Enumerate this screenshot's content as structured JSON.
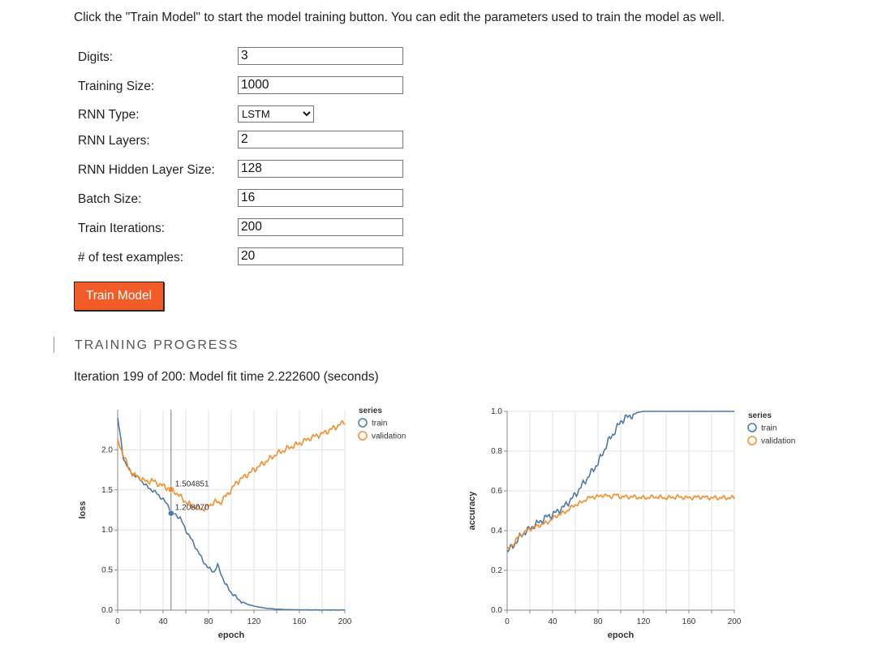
{
  "instructions": "Click the \"Train Model\" to start the model training button. You can edit the parameters used to train the model as well.",
  "form": {
    "fields": [
      {
        "label": "Digits:",
        "value": "3"
      },
      {
        "label": "Training Size:",
        "value": "1000"
      },
      {
        "label": "RNN Type:",
        "value": "LSTM",
        "type": "select"
      },
      {
        "label": "RNN Layers:",
        "value": "2"
      },
      {
        "label": "RNN Hidden Layer Size:",
        "value": "128"
      },
      {
        "label": "Batch Size:",
        "value": "16"
      },
      {
        "label": "Train Iterations:",
        "value": "200"
      },
      {
        "label": "# of test examples:",
        "value": "20"
      }
    ],
    "train_button": "Train Model"
  },
  "progress": {
    "title": "TRAINING PROGRESS",
    "status": "Iteration 199 of 200: Model fit time 2.222600 (seconds)"
  },
  "colors": {
    "train": "#4e79a7",
    "validation": "#f28e2b",
    "button": "#f35c26"
  },
  "chart_data": [
    {
      "type": "line",
      "xlabel": "epoch",
      "ylabel": "loss",
      "xlim": [
        0,
        200
      ],
      "ylim": [
        0,
        2.5
      ],
      "xticks": [
        0,
        40,
        80,
        120,
        160,
        200
      ],
      "yticks": [
        0.0,
        0.5,
        1.0,
        1.5,
        2.0
      ],
      "legend": {
        "title": "series",
        "placement": "top-right"
      },
      "tooltip": {
        "x": 47,
        "labels": [
          "1.504851",
          "1.208070"
        ]
      },
      "series": [
        {
          "name": "train",
          "points": [
            [
              0,
              2.4
            ],
            [
              5,
              1.9
            ],
            [
              10,
              1.75
            ],
            [
              15,
              1.68
            ],
            [
              20,
              1.63
            ],
            [
              25,
              1.55
            ],
            [
              30,
              1.5
            ],
            [
              35,
              1.45
            ],
            [
              40,
              1.38
            ],
            [
              45,
              1.3
            ],
            [
              47,
              1.208
            ],
            [
              50,
              1.2
            ],
            [
              55,
              1.15
            ],
            [
              60,
              1.0
            ],
            [
              65,
              0.88
            ],
            [
              70,
              0.75
            ],
            [
              75,
              0.62
            ],
            [
              80,
              0.52
            ],
            [
              85,
              0.48
            ],
            [
              88,
              0.56
            ],
            [
              92,
              0.42
            ],
            [
              95,
              0.32
            ],
            [
              100,
              0.22
            ],
            [
              105,
              0.15
            ],
            [
              110,
              0.1
            ],
            [
              115,
              0.07
            ],
            [
              120,
              0.05
            ],
            [
              130,
              0.025
            ],
            [
              140,
              0.012
            ],
            [
              150,
              0.006
            ],
            [
              160,
              0.004
            ],
            [
              180,
              0.002
            ],
            [
              200,
              0.002
            ]
          ]
        },
        {
          "name": "validation",
          "points": [
            [
              0,
              2.1
            ],
            [
              5,
              1.95
            ],
            [
              10,
              1.75
            ],
            [
              15,
              1.68
            ],
            [
              20,
              1.65
            ],
            [
              25,
              1.6
            ],
            [
              30,
              1.62
            ],
            [
              35,
              1.58
            ],
            [
              40,
              1.55
            ],
            [
              45,
              1.52
            ],
            [
              47,
              1.505
            ],
            [
              50,
              1.48
            ],
            [
              55,
              1.42
            ],
            [
              60,
              1.35
            ],
            [
              65,
              1.3
            ],
            [
              70,
              1.28
            ],
            [
              75,
              1.26
            ],
            [
              80,
              1.3
            ],
            [
              85,
              1.35
            ],
            [
              90,
              1.34
            ],
            [
              95,
              1.42
            ],
            [
              100,
              1.5
            ],
            [
              105,
              1.6
            ],
            [
              110,
              1.65
            ],
            [
              120,
              1.75
            ],
            [
              130,
              1.85
            ],
            [
              140,
              1.95
            ],
            [
              150,
              2.02
            ],
            [
              160,
              2.08
            ],
            [
              170,
              2.15
            ],
            [
              180,
              2.2
            ],
            [
              190,
              2.27
            ],
            [
              200,
              2.35
            ]
          ]
        }
      ]
    },
    {
      "type": "line",
      "xlabel": "epoch",
      "ylabel": "accuracy",
      "xlim": [
        0,
        200
      ],
      "ylim": [
        0,
        1.0
      ],
      "xticks": [
        0,
        40,
        80,
        120,
        160,
        200
      ],
      "yticks": [
        0.0,
        0.2,
        0.4,
        0.6,
        0.8,
        1.0
      ],
      "legend": {
        "title": "series",
        "placement": "top-right"
      },
      "series": [
        {
          "name": "train",
          "points": [
            [
              0,
              0.3
            ],
            [
              5,
              0.32
            ],
            [
              10,
              0.36
            ],
            [
              15,
              0.39
            ],
            [
              20,
              0.41
            ],
            [
              25,
              0.43
            ],
            [
              30,
              0.45
            ],
            [
              35,
              0.47
            ],
            [
              40,
              0.48
            ],
            [
              45,
              0.5
            ],
            [
              50,
              0.52
            ],
            [
              55,
              0.55
            ],
            [
              60,
              0.58
            ],
            [
              65,
              0.62
            ],
            [
              70,
              0.66
            ],
            [
              75,
              0.7
            ],
            [
              80,
              0.74
            ],
            [
              85,
              0.8
            ],
            [
              90,
              0.86
            ],
            [
              95,
              0.9
            ],
            [
              100,
              0.95
            ],
            [
              105,
              0.97
            ],
            [
              110,
              0.98
            ],
            [
              115,
              0.995
            ],
            [
              120,
              1.0
            ],
            [
              140,
              1.0
            ],
            [
              160,
              1.0
            ],
            [
              180,
              1.0
            ],
            [
              200,
              1.0
            ]
          ]
        },
        {
          "name": "validation",
          "points": [
            [
              0,
              0.3
            ],
            [
              5,
              0.33
            ],
            [
              10,
              0.37
            ],
            [
              15,
              0.39
            ],
            [
              20,
              0.41
            ],
            [
              25,
              0.42
            ],
            [
              30,
              0.43
            ],
            [
              35,
              0.44
            ],
            [
              40,
              0.46
            ],
            [
              45,
              0.48
            ],
            [
              50,
              0.49
            ],
            [
              55,
              0.51
            ],
            [
              60,
              0.53
            ],
            [
              65,
              0.54
            ],
            [
              70,
              0.56
            ],
            [
              75,
              0.57
            ],
            [
              80,
              0.57
            ],
            [
              85,
              0.58
            ],
            [
              90,
              0.57
            ],
            [
              95,
              0.58
            ],
            [
              100,
              0.57
            ],
            [
              105,
              0.57
            ],
            [
              110,
              0.57
            ],
            [
              120,
              0.565
            ],
            [
              130,
              0.57
            ],
            [
              140,
              0.565
            ],
            [
              150,
              0.57
            ],
            [
              160,
              0.565
            ],
            [
              170,
              0.57
            ],
            [
              180,
              0.565
            ],
            [
              190,
              0.565
            ],
            [
              200,
              0.565
            ]
          ]
        }
      ]
    }
  ]
}
